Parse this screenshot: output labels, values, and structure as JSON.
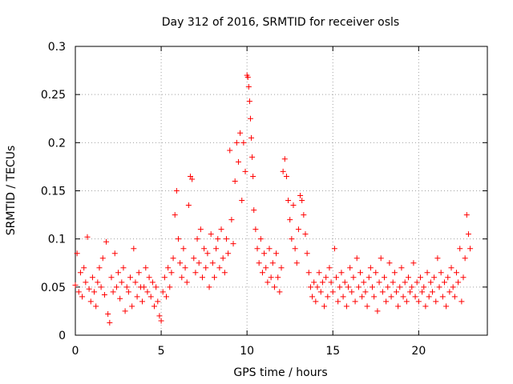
{
  "chart_data": {
    "type": "scatter",
    "title": "Day 312 of 2016, SRMTID for receiver osls",
    "xlabel": "GPS time / hours",
    "ylabel": "SRMTID / TECUs",
    "xlim": [
      0,
      24
    ],
    "ylim": [
      0,
      0.3
    ],
    "xticks": [
      0,
      5,
      10,
      15,
      20
    ],
    "xtick_labels": [
      "0",
      "5",
      "10",
      "15",
      "20"
    ],
    "yticks": [
      0,
      0.05,
      0.1,
      0.15,
      0.2,
      0.25,
      0.3
    ],
    "ytick_labels": [
      "0",
      "0.05",
      "0.1",
      "0.15",
      "0.2",
      "0.25",
      "0.3"
    ],
    "grid": true,
    "marker": "+",
    "series": [
      {
        "name": "SRMTID",
        "color": "#ff0000",
        "points": [
          [
            0.0,
            0.052
          ],
          [
            0.1,
            0.085
          ],
          [
            0.2,
            0.045
          ],
          [
            0.3,
            0.065
          ],
          [
            0.4,
            0.04
          ],
          [
            0.5,
            0.07
          ],
          [
            0.6,
            0.055
          ],
          [
            0.7,
            0.102
          ],
          [
            0.8,
            0.048
          ],
          [
            0.9,
            0.035
          ],
          [
            1.0,
            0.06
          ],
          [
            1.1,
            0.045
          ],
          [
            1.2,
            0.03
          ],
          [
            1.3,
            0.055
          ],
          [
            1.4,
            0.07
          ],
          [
            1.5,
            0.05
          ],
          [
            1.6,
            0.08
          ],
          [
            1.7,
            0.042
          ],
          [
            1.8,
            0.097
          ],
          [
            1.9,
            0.022
          ],
          [
            2.0,
            0.013
          ],
          [
            2.1,
            0.06
          ],
          [
            2.2,
            0.045
          ],
          [
            2.3,
            0.085
          ],
          [
            2.4,
            0.05
          ],
          [
            2.5,
            0.065
          ],
          [
            2.6,
            0.038
          ],
          [
            2.7,
            0.055
          ],
          [
            2.8,
            0.07
          ],
          [
            2.9,
            0.025
          ],
          [
            3.0,
            0.05
          ],
          [
            3.1,
            0.045
          ],
          [
            3.2,
            0.06
          ],
          [
            3.3,
            0.03
          ],
          [
            3.4,
            0.09
          ],
          [
            3.5,
            0.055
          ],
          [
            3.6,
            0.04
          ],
          [
            3.7,
            0.065
          ],
          [
            3.8,
            0.05
          ],
          [
            3.9,
            0.035
          ],
          [
            4.0,
            0.05
          ],
          [
            4.1,
            0.07
          ],
          [
            4.2,
            0.045
          ],
          [
            4.3,
            0.06
          ],
          [
            4.4,
            0.04
          ],
          [
            4.5,
            0.055
          ],
          [
            4.6,
            0.03
          ],
          [
            4.7,
            0.05
          ],
          [
            4.8,
            0.035
          ],
          [
            4.9,
            0.02
          ],
          [
            5.0,
            0.015
          ],
          [
            5.1,
            0.045
          ],
          [
            5.2,
            0.06
          ],
          [
            5.3,
            0.04
          ],
          [
            5.4,
            0.07
          ],
          [
            5.5,
            0.05
          ],
          [
            5.6,
            0.065
          ],
          [
            5.7,
            0.08
          ],
          [
            5.8,
            0.125
          ],
          [
            5.9,
            0.15
          ],
          [
            6.0,
            0.1
          ],
          [
            6.1,
            0.075
          ],
          [
            6.2,
            0.06
          ],
          [
            6.3,
            0.09
          ],
          [
            6.4,
            0.07
          ],
          [
            6.5,
            0.055
          ],
          [
            6.6,
            0.135
          ],
          [
            6.7,
            0.165
          ],
          [
            6.8,
            0.162
          ],
          [
            6.9,
            0.08
          ],
          [
            7.0,
            0.065
          ],
          [
            7.1,
            0.1
          ],
          [
            7.2,
            0.075
          ],
          [
            7.3,
            0.11
          ],
          [
            7.4,
            0.06
          ],
          [
            7.5,
            0.09
          ],
          [
            7.6,
            0.07
          ],
          [
            7.7,
            0.085
          ],
          [
            7.8,
            0.05
          ],
          [
            7.9,
            0.105
          ],
          [
            8.0,
            0.075
          ],
          [
            8.1,
            0.06
          ],
          [
            8.2,
            0.09
          ],
          [
            8.3,
            0.1
          ],
          [
            8.4,
            0.07
          ],
          [
            8.5,
            0.11
          ],
          [
            8.6,
            0.08
          ],
          [
            8.7,
            0.065
          ],
          [
            8.8,
            0.1
          ],
          [
            8.9,
            0.085
          ],
          [
            9.0,
            0.192
          ],
          [
            9.1,
            0.12
          ],
          [
            9.2,
            0.095
          ],
          [
            9.3,
            0.16
          ],
          [
            9.4,
            0.2
          ],
          [
            9.5,
            0.18
          ],
          [
            9.6,
            0.21
          ],
          [
            9.7,
            0.14
          ],
          [
            9.8,
            0.2
          ],
          [
            9.9,
            0.17
          ],
          [
            10.0,
            0.27
          ],
          [
            10.05,
            0.268
          ],
          [
            10.1,
            0.258
          ],
          [
            10.15,
            0.243
          ],
          [
            10.2,
            0.225
          ],
          [
            10.25,
            0.205
          ],
          [
            10.3,
            0.185
          ],
          [
            10.35,
            0.165
          ],
          [
            10.4,
            0.13
          ],
          [
            10.5,
            0.11
          ],
          [
            10.6,
            0.09
          ],
          [
            10.7,
            0.075
          ],
          [
            10.8,
            0.1
          ],
          [
            10.9,
            0.065
          ],
          [
            11.0,
            0.085
          ],
          [
            11.1,
            0.07
          ],
          [
            11.2,
            0.055
          ],
          [
            11.3,
            0.09
          ],
          [
            11.4,
            0.06
          ],
          [
            11.5,
            0.075
          ],
          [
            11.6,
            0.05
          ],
          [
            11.7,
            0.085
          ],
          [
            11.8,
            0.06
          ],
          [
            11.9,
            0.045
          ],
          [
            12.0,
            0.07
          ],
          [
            12.1,
            0.17
          ],
          [
            12.2,
            0.183
          ],
          [
            12.3,
            0.165
          ],
          [
            12.4,
            0.14
          ],
          [
            12.5,
            0.12
          ],
          [
            12.6,
            0.1
          ],
          [
            12.7,
            0.135
          ],
          [
            12.8,
            0.09
          ],
          [
            12.9,
            0.075
          ],
          [
            13.0,
            0.11
          ],
          [
            13.1,
            0.145
          ],
          [
            13.2,
            0.14
          ],
          [
            13.3,
            0.125
          ],
          [
            13.4,
            0.105
          ],
          [
            13.5,
            0.085
          ],
          [
            13.6,
            0.065
          ],
          [
            13.7,
            0.05
          ],
          [
            13.8,
            0.04
          ],
          [
            13.9,
            0.055
          ],
          [
            14.0,
            0.035
          ],
          [
            14.1,
            0.05
          ],
          [
            14.2,
            0.065
          ],
          [
            14.3,
            0.045
          ],
          [
            14.4,
            0.055
          ],
          [
            14.5,
            0.03
          ],
          [
            14.6,
            0.06
          ],
          [
            14.7,
            0.04
          ],
          [
            14.8,
            0.07
          ],
          [
            14.9,
            0.055
          ],
          [
            15.0,
            0.045
          ],
          [
            15.1,
            0.09
          ],
          [
            15.2,
            0.06
          ],
          [
            15.3,
            0.035
          ],
          [
            15.4,
            0.05
          ],
          [
            15.5,
            0.065
          ],
          [
            15.6,
            0.04
          ],
          [
            15.7,
            0.055
          ],
          [
            15.8,
            0.03
          ],
          [
            15.9,
            0.05
          ],
          [
            16.0,
            0.07
          ],
          [
            16.1,
            0.045
          ],
          [
            16.2,
            0.06
          ],
          [
            16.3,
            0.035
          ],
          [
            16.4,
            0.08
          ],
          [
            16.5,
            0.05
          ],
          [
            16.6,
            0.065
          ],
          [
            16.7,
            0.04
          ],
          [
            16.8,
            0.055
          ],
          [
            16.9,
            0.045
          ],
          [
            17.0,
            0.03
          ],
          [
            17.1,
            0.06
          ],
          [
            17.2,
            0.07
          ],
          [
            17.3,
            0.05
          ],
          [
            17.4,
            0.04
          ],
          [
            17.5,
            0.065
          ],
          [
            17.6,
            0.025
          ],
          [
            17.7,
            0.055
          ],
          [
            17.8,
            0.08
          ],
          [
            17.9,
            0.045
          ],
          [
            18.0,
            0.06
          ],
          [
            18.1,
            0.035
          ],
          [
            18.2,
            0.05
          ],
          [
            18.3,
            0.075
          ],
          [
            18.4,
            0.04
          ],
          [
            18.5,
            0.055
          ],
          [
            18.6,
            0.065
          ],
          [
            18.7,
            0.045
          ],
          [
            18.8,
            0.03
          ],
          [
            18.9,
            0.05
          ],
          [
            19.0,
            0.07
          ],
          [
            19.1,
            0.04
          ],
          [
            19.2,
            0.055
          ],
          [
            19.3,
            0.035
          ],
          [
            19.4,
            0.06
          ],
          [
            19.5,
            0.045
          ],
          [
            19.6,
            0.05
          ],
          [
            19.7,
            0.075
          ],
          [
            19.8,
            0.04
          ],
          [
            19.9,
            0.055
          ],
          [
            20.0,
            0.035
          ],
          [
            20.1,
            0.06
          ],
          [
            20.2,
            0.045
          ],
          [
            20.3,
            0.05
          ],
          [
            20.4,
            0.03
          ],
          [
            20.5,
            0.065
          ],
          [
            20.6,
            0.04
          ],
          [
            20.7,
            0.055
          ],
          [
            20.8,
            0.045
          ],
          [
            20.9,
            0.06
          ],
          [
            21.0,
            0.035
          ],
          [
            21.1,
            0.08
          ],
          [
            21.2,
            0.05
          ],
          [
            21.3,
            0.065
          ],
          [
            21.4,
            0.04
          ],
          [
            21.5,
            0.055
          ],
          [
            21.6,
            0.03
          ],
          [
            21.7,
            0.06
          ],
          [
            21.8,
            0.045
          ],
          [
            21.9,
            0.07
          ],
          [
            22.0,
            0.05
          ],
          [
            22.1,
            0.04
          ],
          [
            22.2,
            0.065
          ],
          [
            22.3,
            0.055
          ],
          [
            22.4,
            0.09
          ],
          [
            22.5,
            0.035
          ],
          [
            22.6,
            0.06
          ],
          [
            22.7,
            0.08
          ],
          [
            22.8,
            0.125
          ],
          [
            22.9,
            0.105
          ],
          [
            23.0,
            0.09
          ]
        ]
      }
    ]
  }
}
